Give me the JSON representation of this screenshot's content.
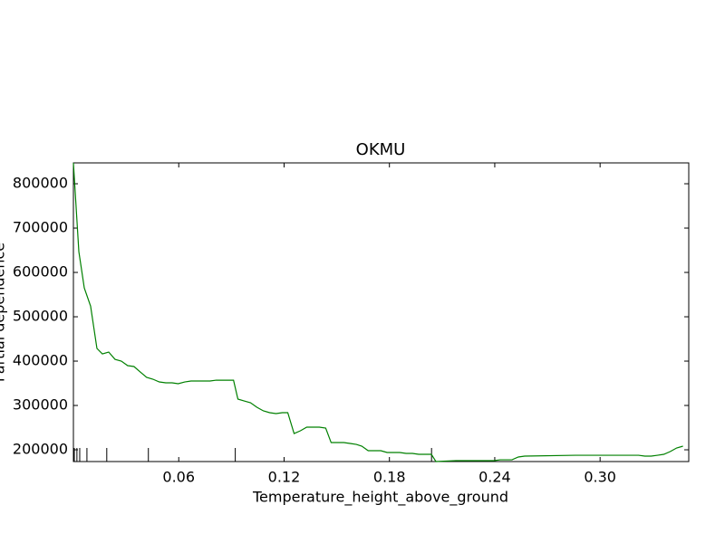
{
  "chart_data": {
    "type": "line",
    "title": "OKMU",
    "x_label": "Temperature_height_above_ground",
    "y_label": "Partial dependence",
    "series": [
      {
        "name": null,
        "color": "#008000",
        "x": [
          0,
          0.0031,
          0.0062,
          0.0098,
          0.0134,
          0.0165,
          0.0201,
          0.0237,
          0.0273,
          0.0309,
          0.0345,
          0.0381,
          0.0417,
          0.0453,
          0.0489,
          0.0526,
          0.0562,
          0.0597,
          0.0634,
          0.067,
          0.0706,
          0.0742,
          0.0778,
          0.0814,
          0.085,
          0.0886,
          0.0912,
          0.0937,
          0.0973,
          0.1009,
          0.1045,
          0.1082,
          0.1118,
          0.1154,
          0.119,
          0.1221,
          0.1257,
          0.1293,
          0.1329,
          0.1365,
          0.1401,
          0.1437,
          0.1468,
          0.1504,
          0.154,
          0.1576,
          0.1612,
          0.1643,
          0.1679,
          0.1715,
          0.1751,
          0.1787,
          0.1823,
          0.1859,
          0.1895,
          0.1931,
          0.1967,
          0.2003,
          0.2039,
          0.2065,
          0.2179,
          0.2359,
          0.2395,
          0.2431,
          0.2498,
          0.2534,
          0.257,
          0.2858,
          0.3219,
          0.3255,
          0.3291,
          0.3327,
          0.3363,
          0.3399,
          0.3436,
          0.3472
        ],
        "values": [
          847000,
          646900,
          565000,
          524000,
          428600,
          416300,
          420400,
          404000,
          400000,
          389800,
          387800,
          375500,
          363300,
          359200,
          353100,
          351000,
          351000,
          349000,
          353000,
          355100,
          355100,
          355100,
          355100,
          357000,
          357000,
          357000,
          357000,
          314300,
          310200,
          306100,
          295900,
          287800,
          283700,
          281600,
          283700,
          283700,
          236700,
          242900,
          251000,
          251000,
          251000,
          249000,
          216300,
          216300,
          216300,
          214300,
          212200,
          208200,
          198000,
          198000,
          198000,
          193900,
          193900,
          193900,
          191800,
          191800,
          189800,
          189800,
          189800,
          173500,
          175500,
          175500,
          175500,
          177500,
          177500,
          183700,
          185700,
          187700,
          187700,
          185700,
          185700,
          187700,
          189800,
          195900,
          204100,
          208200
        ]
      }
    ],
    "deciles": [
      0.0005,
      0.002,
      0.0036,
      0.0077,
      0.019,
      0.0427,
      0.0922,
      0.204
    ],
    "xlim": [
      0,
      0.3505
    ],
    "ylim": [
      173500,
      847000
    ],
    "xticks": [
      0.06,
      0.12,
      0.18,
      0.24,
      {
        "value": 0.3,
        "label": "0.30"
      }
    ],
    "yticks": [
      200000,
      300000,
      400000,
      500000,
      600000,
      700000,
      800000
    ]
  }
}
